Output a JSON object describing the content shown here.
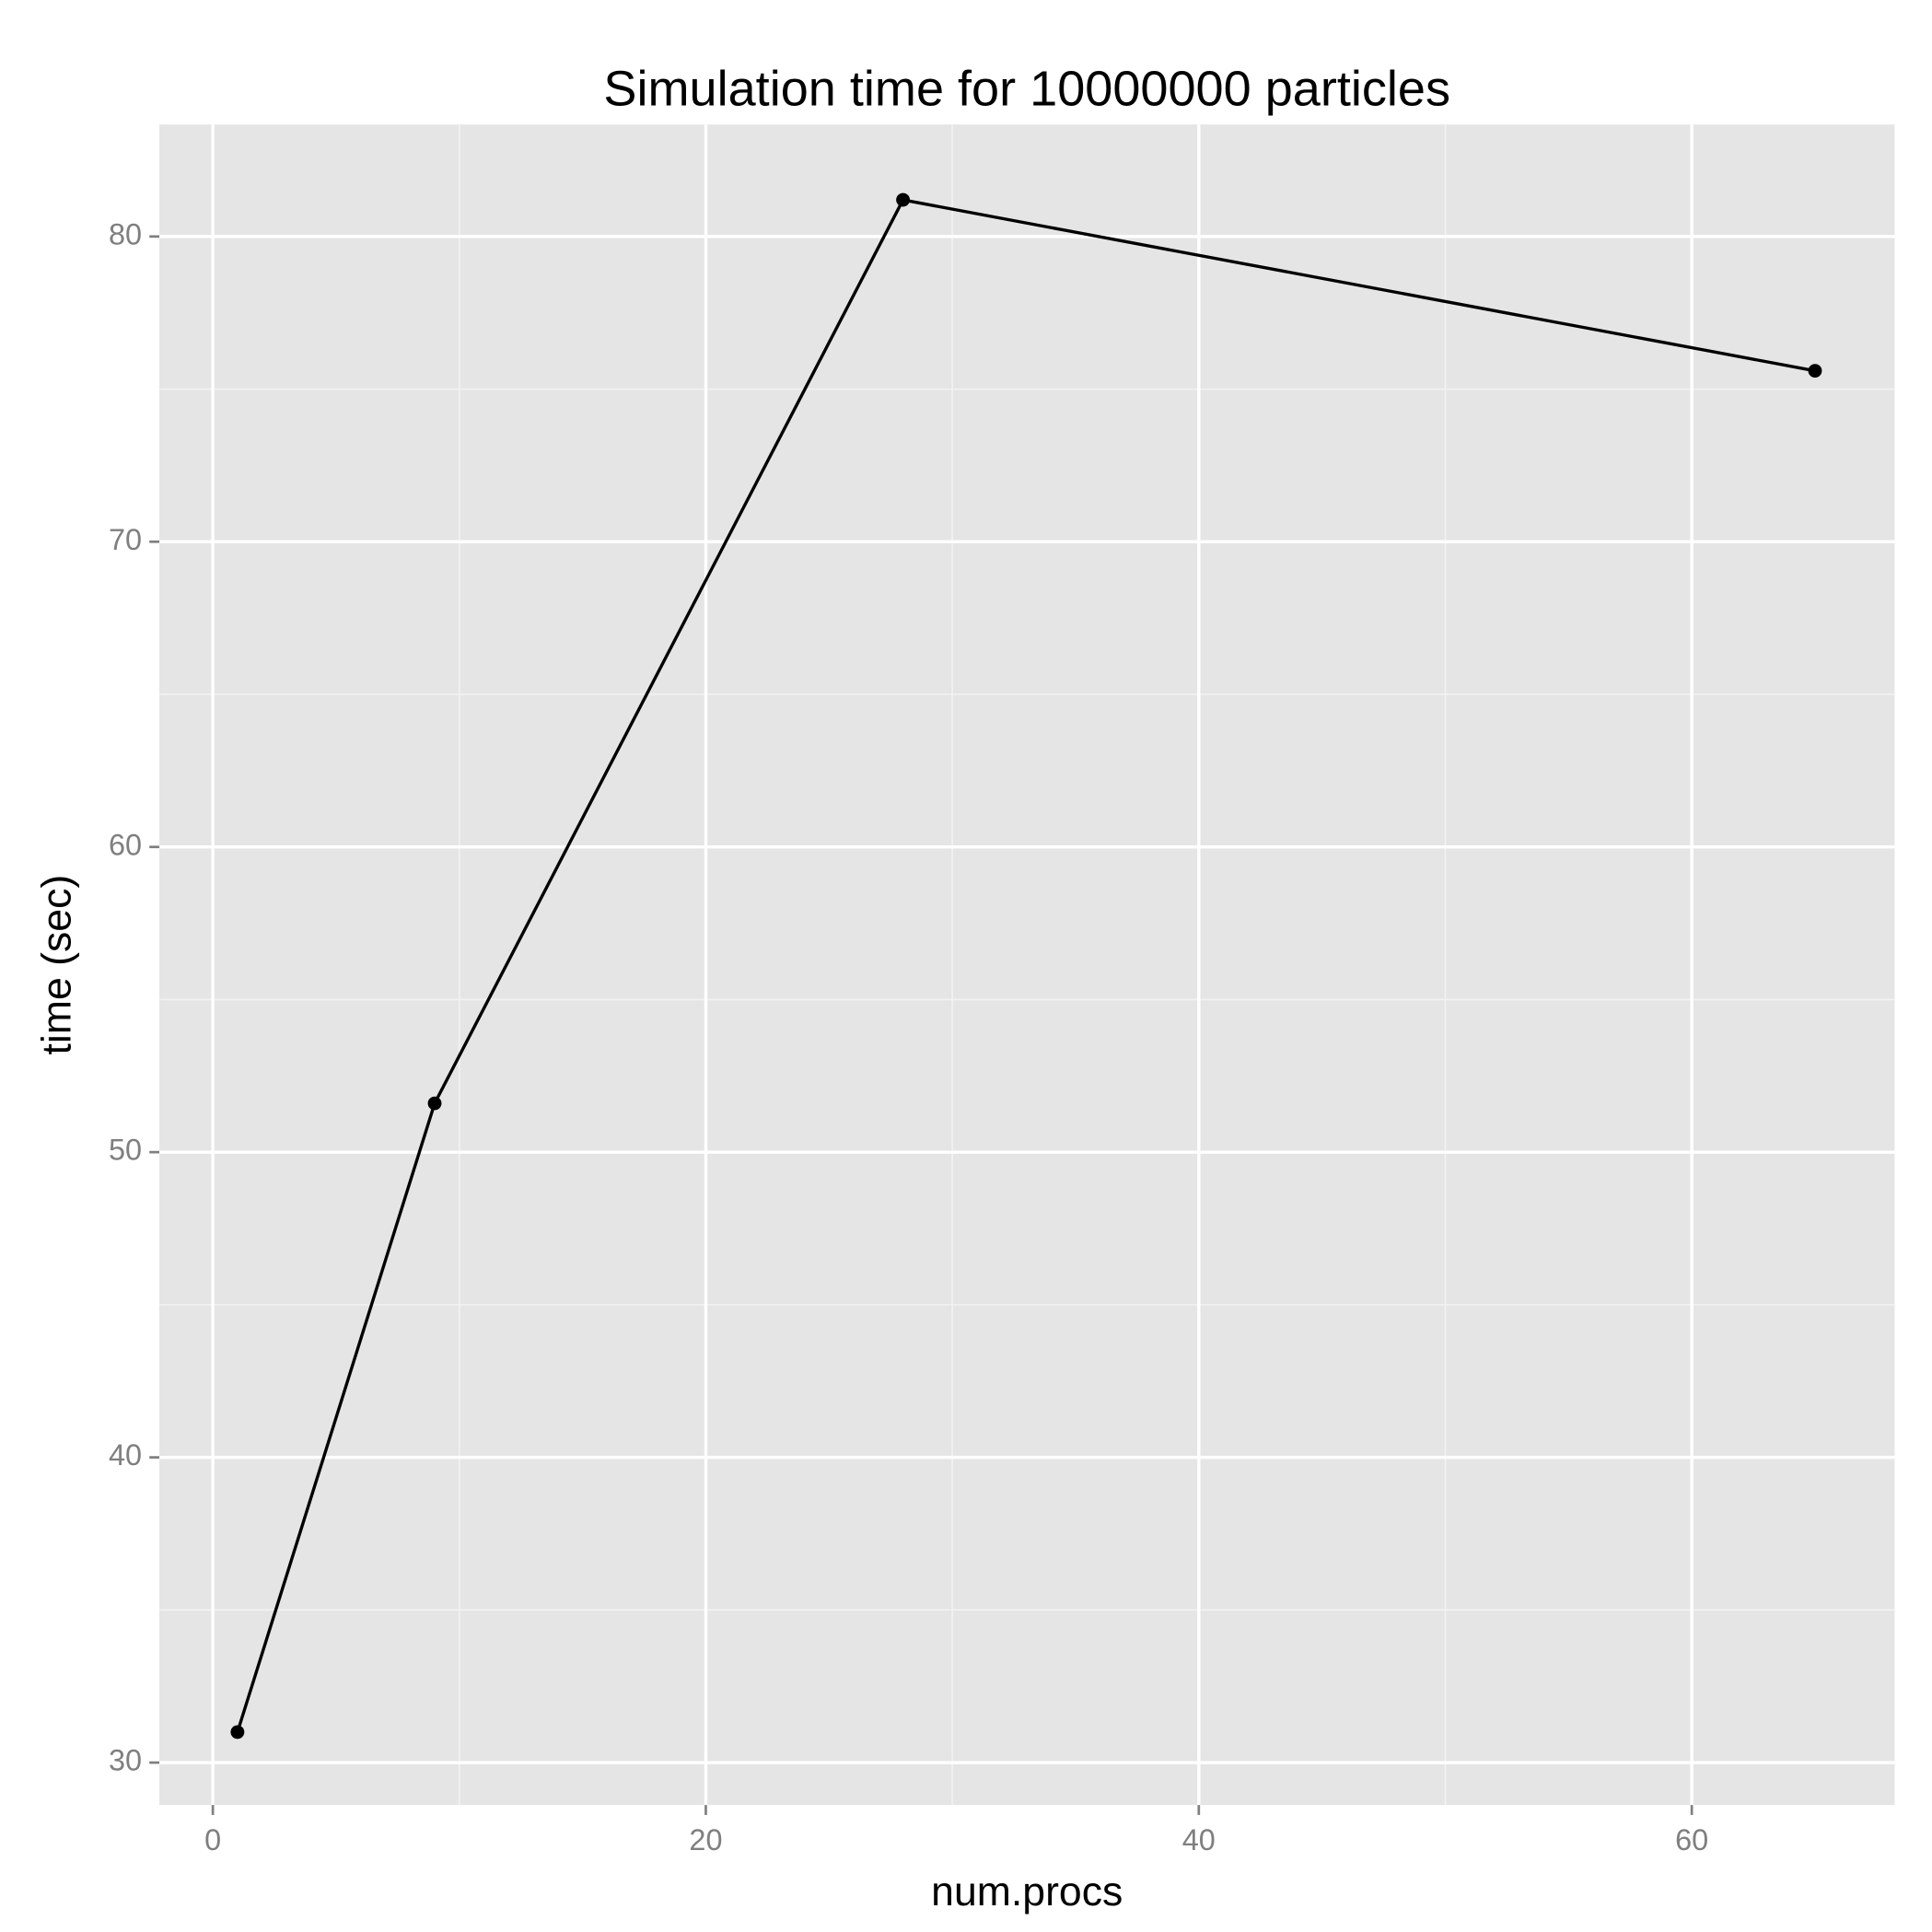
{
  "chart_data": {
    "type": "line",
    "title": "Simulation time for 10000000 particles",
    "x_label": "num.procs",
    "y_label": "time (sec)",
    "x": [
      1,
      9,
      28,
      65
    ],
    "series": [
      {
        "color": "#000000",
        "values": [
          31.0,
          51.6,
          81.2,
          75.6
        ]
      }
    ],
    "xlim": [
      -2.17,
      68.23
    ],
    "ylim": [
      28.61,
      83.67
    ],
    "xticks": [
      0,
      20,
      40,
      60
    ],
    "yticks": [
      30,
      40,
      50,
      60,
      70,
      80
    ],
    "xminor": [
      10,
      30,
      50
    ],
    "yminor": [
      35,
      45,
      55,
      65,
      75
    ],
    "grid": true
  }
}
